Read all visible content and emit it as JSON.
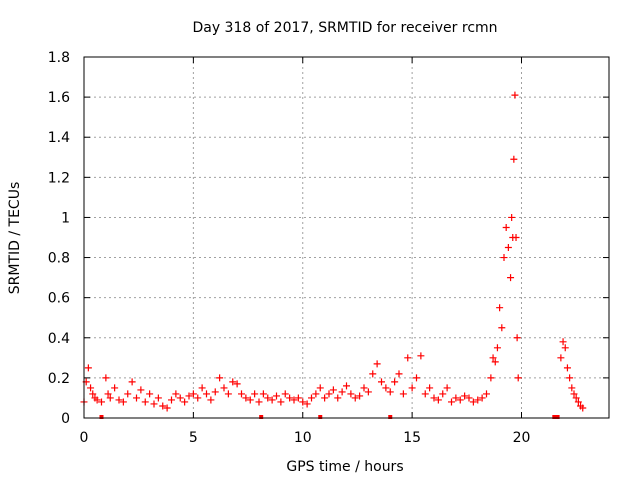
{
  "chart_data": {
    "type": "scatter",
    "title": "Day 318 of 2017, SRMTID for receiver rcmn",
    "xlabel": "GPS time / hours",
    "ylabel": "SRMTID / TECUs",
    "xlim": [
      0,
      24
    ],
    "ylim": [
      0,
      1.8
    ],
    "x_ticks": [
      0,
      5,
      10,
      15,
      20
    ],
    "x_tick_labels": [
      "0",
      "5",
      "10",
      "15",
      "20"
    ],
    "y_ticks": [
      0,
      0.2,
      0.4,
      0.6,
      0.8,
      1.0,
      1.2,
      1.4,
      1.6,
      1.8
    ],
    "y_tick_labels": [
      "0",
      "0.2",
      "0.4",
      "0.6",
      "0.8",
      "1",
      "1.2",
      "1.4",
      "1.6",
      "1.8"
    ],
    "grid": true,
    "marker": "+",
    "color": "#ff0000",
    "series": [
      {
        "name": "SRMTID",
        "x": [
          0.0,
          0.1,
          0.2,
          0.3,
          0.4,
          0.5,
          0.6,
          0.8,
          1.0,
          1.1,
          1.2,
          1.4,
          1.6,
          1.8,
          2.0,
          2.2,
          2.4,
          2.6,
          2.8,
          3.0,
          3.2,
          3.4,
          3.6,
          3.8,
          4.0,
          4.2,
          4.4,
          4.6,
          4.8,
          5.0,
          5.2,
          5.4,
          5.6,
          5.8,
          6.0,
          6.2,
          6.4,
          6.6,
          6.8,
          7.0,
          7.2,
          7.4,
          7.6,
          7.8,
          8.0,
          8.2,
          8.4,
          8.6,
          8.8,
          9.0,
          9.2,
          9.4,
          9.6,
          9.8,
          10.0,
          10.2,
          10.4,
          10.6,
          10.8,
          11.0,
          11.2,
          11.4,
          11.6,
          11.8,
          12.0,
          12.2,
          12.4,
          12.6,
          12.8,
          13.0,
          13.2,
          13.4,
          13.6,
          13.8,
          14.0,
          14.2,
          14.4,
          14.6,
          14.8,
          15.0,
          15.2,
          15.4,
          15.6,
          15.8,
          16.0,
          16.2,
          16.4,
          16.6,
          16.8,
          17.0,
          17.2,
          17.4,
          17.6,
          17.8,
          18.0,
          18.2,
          18.4,
          18.6,
          18.7,
          18.8,
          18.9,
          19.0,
          19.1,
          19.2,
          19.3,
          19.4,
          19.5,
          19.55,
          19.6,
          19.65,
          19.7,
          19.75,
          19.8,
          19.85,
          21.8,
          21.9,
          22.0,
          22.1,
          22.2,
          22.3,
          22.4,
          22.5,
          22.6,
          22.7,
          22.8
        ],
        "y": [
          0.08,
          0.18,
          0.25,
          0.15,
          0.12,
          0.1,
          0.09,
          0.08,
          0.2,
          0.12,
          0.1,
          0.15,
          0.09,
          0.08,
          0.12,
          0.18,
          0.1,
          0.14,
          0.08,
          0.12,
          0.07,
          0.1,
          0.06,
          0.05,
          0.09,
          0.12,
          0.1,
          0.08,
          0.11,
          0.12,
          0.1,
          0.15,
          0.12,
          0.09,
          0.13,
          0.2,
          0.15,
          0.12,
          0.18,
          0.17,
          0.12,
          0.1,
          0.09,
          0.12,
          0.08,
          0.12,
          0.1,
          0.09,
          0.11,
          0.08,
          0.12,
          0.1,
          0.09,
          0.1,
          0.08,
          0.07,
          0.1,
          0.12,
          0.15,
          0.1,
          0.12,
          0.14,
          0.1,
          0.13,
          0.16,
          0.12,
          0.1,
          0.11,
          0.15,
          0.13,
          0.22,
          0.27,
          0.18,
          0.15,
          0.13,
          0.18,
          0.22,
          0.12,
          0.3,
          0.15,
          0.2,
          0.31,
          0.12,
          0.15,
          0.1,
          0.09,
          0.12,
          0.15,
          0.08,
          0.1,
          0.09,
          0.11,
          0.1,
          0.08,
          0.09,
          0.1,
          0.12,
          0.2,
          0.3,
          0.28,
          0.35,
          0.55,
          0.45,
          0.8,
          0.95,
          0.85,
          0.7,
          1.0,
          0.9,
          1.29,
          1.61,
          0.9,
          0.4,
          0.2,
          0.3,
          0.38,
          0.35,
          0.25,
          0.2,
          0.15,
          0.12,
          0.1,
          0.08,
          0.06,
          0.05
        ]
      }
    ],
    "floor_markers_x": [
      0.8,
      8.1,
      10.8,
      14.0,
      21.5,
      21.65
    ]
  }
}
